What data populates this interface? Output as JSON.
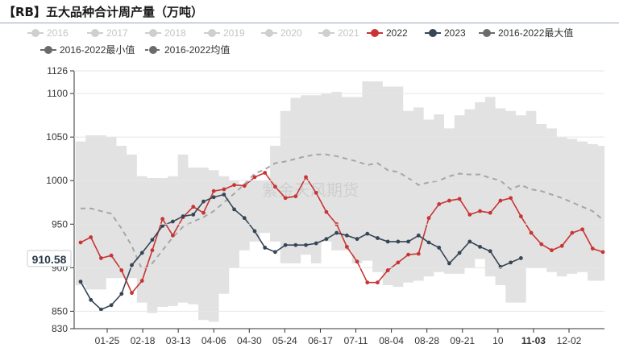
{
  "title": "【RB】五大品种合计周产量（万吨）",
  "watermark": "紫金天风期货",
  "colors": {
    "band": "#e2e2e2",
    "avg": "#a6a6a6",
    "y2022": "#c83535",
    "y2023": "#374656",
    "legend_faded": "#cfcfcf",
    "legend_max": "#6b6b6b",
    "legend_min": "#6b6b6b",
    "legend_avg": "#6b6b6b"
  },
  "chart_data": {
    "type": "line",
    "title": "【RB】五大品种合计周产量（万吨）",
    "xlabel": "",
    "ylabel": "",
    "ylim": [
      830,
      1126
    ],
    "yticks": [
      830,
      850,
      900,
      950,
      1000,
      1050,
      1100,
      1126
    ],
    "xtick_labels": [
      "01-25",
      "02-18",
      "03-13",
      "04-06",
      "04-30",
      "05-24",
      "06-17",
      "07-11",
      "08-04",
      "08-28",
      "09-21",
      "10",
      "11-03",
      "12-02"
    ],
    "current_value_label": "910.58",
    "x_weeks": 52,
    "legend": [
      {
        "name": "2016",
        "faded": true
      },
      {
        "name": "2017",
        "faded": true
      },
      {
        "name": "2018",
        "faded": true
      },
      {
        "name": "2019",
        "faded": true
      },
      {
        "name": "2020",
        "faded": true
      },
      {
        "name": "2021",
        "faded": true
      },
      {
        "name": "2022",
        "faded": false
      },
      {
        "name": "2023",
        "faded": false
      },
      {
        "name": "2016-2022最大值",
        "faded": false
      },
      {
        "name": "2016-2022最小值",
        "faded": false
      },
      {
        "name": "2016-2022均值",
        "faded": false
      }
    ],
    "series": [
      {
        "name": "2016-2022最大值",
        "values": [
          1045,
          1052,
          1052,
          1050,
          1040,
          1030,
          1005,
          1003,
          1003,
          1005,
          1030,
          1015,
          1015,
          1012,
          1005,
          1000,
          996,
          1000,
          1000,
          1040,
          1080,
          1095,
          1098,
          1098,
          1100,
          1102,
          1096,
          1096,
          1114,
          1114,
          1108,
          1108,
          1080,
          1084,
          1070,
          1076,
          1060,
          1075,
          1082,
          1090,
          1096,
          1083,
          1080,
          1075,
          1080,
          1065,
          1060,
          1050,
          1048,
          1045,
          1042,
          1040
        ]
      },
      {
        "name": "2016-2022最小值",
        "values": [
          880,
          875,
          875,
          888,
          888,
          888,
          860,
          848,
          855,
          856,
          860,
          858,
          840,
          838,
          870,
          900,
          920,
          930,
          940,
          930,
          905,
          905,
          915,
          905,
          930,
          920,
          920,
          905,
          908,
          895,
          880,
          878,
          883,
          885,
          890,
          895,
          893,
          893,
          900,
          910,
          890,
          880,
          860,
          860,
          900,
          900,
          895,
          890,
          893,
          895,
          885,
          885
        ]
      },
      {
        "name": "2016-2022均值",
        "values": [
          968,
          968,
          965,
          962,
          945,
          925,
          898,
          905,
          920,
          935,
          947,
          953,
          958,
          965,
          975,
          985,
          996,
          1008,
          1013,
          1020,
          1022,
          1025,
          1028,
          1030,
          1030,
          1028,
          1025,
          1022,
          1018,
          1020,
          1012,
          1010,
          1003,
          995,
          998,
          1000,
          1005,
          1008,
          1007,
          1007,
          1003,
          1000,
          990,
          995,
          990,
          988,
          984,
          980,
          975,
          970,
          965,
          955
        ]
      },
      {
        "name": "2022",
        "values": [
          929,
          935,
          911,
          914,
          897,
          871,
          885,
          920,
          956,
          937,
          958,
          970,
          963,
          988,
          990,
          995,
          994,
          1004,
          1009,
          993,
          980,
          982,
          1004,
          986,
          964,
          950,
          924,
          907,
          883,
          883,
          897,
          906,
          915,
          916,
          957,
          973,
          977,
          979,
          961,
          965,
          963,
          977,
          980,
          959,
          940,
          927,
          920,
          925,
          940,
          944,
          922,
          918
        ]
      },
      {
        "name": "2023",
        "values": [
          884,
          863,
          852,
          857,
          870,
          903,
          917,
          932,
          948,
          953,
          959,
          961,
          976,
          981,
          984,
          967,
          957,
          942,
          923,
          918,
          926,
          926,
          926,
          928,
          933,
          940,
          937,
          933,
          939,
          934,
          930,
          930,
          930,
          937,
          929,
          923,
          905,
          917,
          930,
          924,
          919,
          901,
          906,
          911
        ]
      }
    ]
  }
}
